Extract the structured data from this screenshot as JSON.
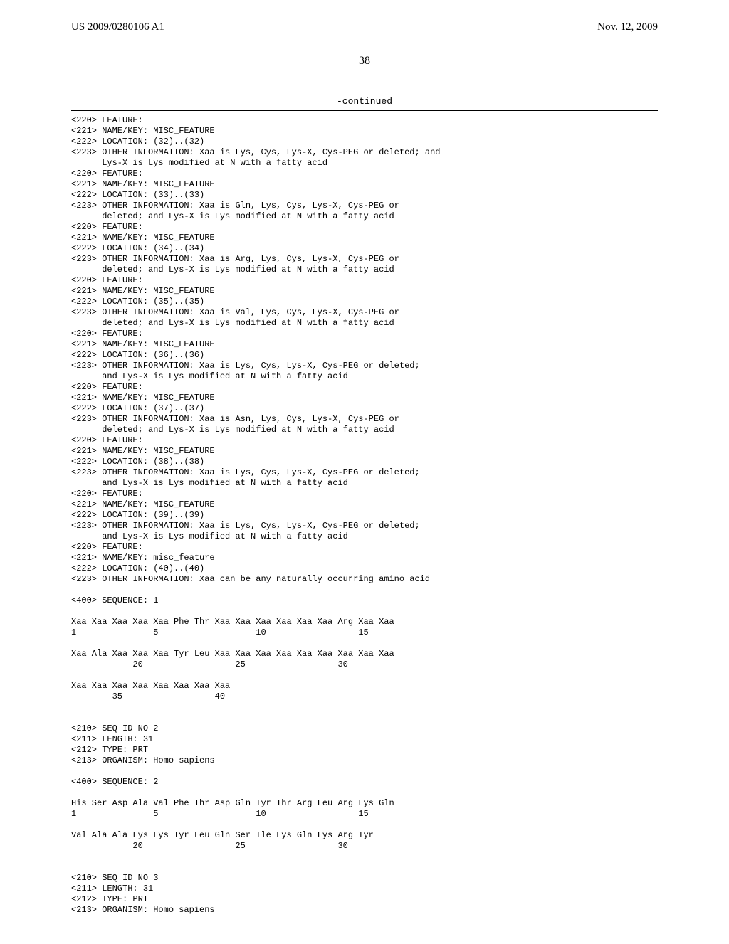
{
  "header": {
    "left": "US 2009/0280106 A1",
    "right": "Nov. 12, 2009"
  },
  "page_number": "38",
  "continued_label": "-continued",
  "features": [
    {
      "l220": "<220> FEATURE:",
      "l221": "<221> NAME/KEY: MISC_FEATURE",
      "l222": "<222> LOCATION: (32)..(32)",
      "l223": "<223> OTHER INFORMATION: Xaa is Lys, Cys, Lys-X, Cys-PEG or deleted; and",
      "l223b": "      Lys-X is Lys modified at N with a fatty acid"
    },
    {
      "l220": "<220> FEATURE:",
      "l221": "<221> NAME/KEY: MISC_FEATURE",
      "l222": "<222> LOCATION: (33)..(33)",
      "l223": "<223> OTHER INFORMATION: Xaa is Gln, Lys, Cys, Lys-X, Cys-PEG or",
      "l223b": "      deleted; and Lys-X is Lys modified at N with a fatty acid"
    },
    {
      "l220": "<220> FEATURE:",
      "l221": "<221> NAME/KEY: MISC_FEATURE",
      "l222": "<222> LOCATION: (34)..(34)",
      "l223": "<223> OTHER INFORMATION: Xaa is Arg, Lys, Cys, Lys-X, Cys-PEG or",
      "l223b": "      deleted; and Lys-X is Lys modified at N with a fatty acid"
    },
    {
      "l220": "<220> FEATURE:",
      "l221": "<221> NAME/KEY: MISC_FEATURE",
      "l222": "<222> LOCATION: (35)..(35)",
      "l223": "<223> OTHER INFORMATION: Xaa is Val, Lys, Cys, Lys-X, Cys-PEG or",
      "l223b": "      deleted; and Lys-X is Lys modified at N with a fatty acid"
    },
    {
      "l220": "<220> FEATURE:",
      "l221": "<221> NAME/KEY: MISC_FEATURE",
      "l222": "<222> LOCATION: (36)..(36)",
      "l223": "<223> OTHER INFORMATION: Xaa is Lys, Cys, Lys-X, Cys-PEG or deleted;",
      "l223b": "      and Lys-X is Lys modified at N with a fatty acid"
    },
    {
      "l220": "<220> FEATURE:",
      "l221": "<221> NAME/KEY: MISC_FEATURE",
      "l222": "<222> LOCATION: (37)..(37)",
      "l223": "<223> OTHER INFORMATION: Xaa is Asn, Lys, Cys, Lys-X, Cys-PEG or",
      "l223b": "      deleted; and Lys-X is Lys modified at N with a fatty acid"
    },
    {
      "l220": "<220> FEATURE:",
      "l221": "<221> NAME/KEY: MISC_FEATURE",
      "l222": "<222> LOCATION: (38)..(38)",
      "l223": "<223> OTHER INFORMATION: Xaa is Lys, Cys, Lys-X, Cys-PEG or deleted;",
      "l223b": "      and Lys-X is Lys modified at N with a fatty acid"
    },
    {
      "l220": "<220> FEATURE:",
      "l221": "<221> NAME/KEY: MISC_FEATURE",
      "l222": "<222> LOCATION: (39)..(39)",
      "l223": "<223> OTHER INFORMATION: Xaa is Lys, Cys, Lys-X, Cys-PEG or deleted;",
      "l223b": "      and Lys-X is Lys modified at N with a fatty acid"
    },
    {
      "l220": "<220> FEATURE:",
      "l221": "<221> NAME/KEY: misc_feature",
      "l222": "<222> LOCATION: (40)..(40)",
      "l223": "<223> OTHER INFORMATION: Xaa can be any naturally occurring amino acid",
      "l223b": ""
    }
  ],
  "seq1": {
    "header": "<400> SEQUENCE: 1",
    "row1": "Xaa Xaa Xaa Xaa Xaa Phe Thr Xaa Xaa Xaa Xaa Xaa Xaa Arg Xaa Xaa",
    "num1": "1               5                   10                  15",
    "row2": "Xaa Ala Xaa Xaa Xaa Tyr Leu Xaa Xaa Xaa Xaa Xaa Xaa Xaa Xaa Xaa",
    "num2": "            20                  25                  30",
    "row3": "Xaa Xaa Xaa Xaa Xaa Xaa Xaa Xaa",
    "num3": "        35                  40"
  },
  "seq2hdr": {
    "l210": "<210> SEQ ID NO 2",
    "l211": "<211> LENGTH: 31",
    "l212": "<212> TYPE: PRT",
    "l213": "<213> ORGANISM: Homo sapiens"
  },
  "seq2": {
    "header": "<400> SEQUENCE: 2",
    "row1": "His Ser Asp Ala Val Phe Thr Asp Gln Tyr Thr Arg Leu Arg Lys Gln",
    "num1": "1               5                   10                  15",
    "row2": "Val Ala Ala Lys Lys Tyr Leu Gln Ser Ile Lys Gln Lys Arg Tyr",
    "num2": "            20                  25                  30"
  },
  "seq3hdr": {
    "l210": "<210> SEQ ID NO 3",
    "l211": "<211> LENGTH: 31",
    "l212": "<212> TYPE: PRT",
    "l213": "<213> ORGANISM: Homo sapiens"
  }
}
